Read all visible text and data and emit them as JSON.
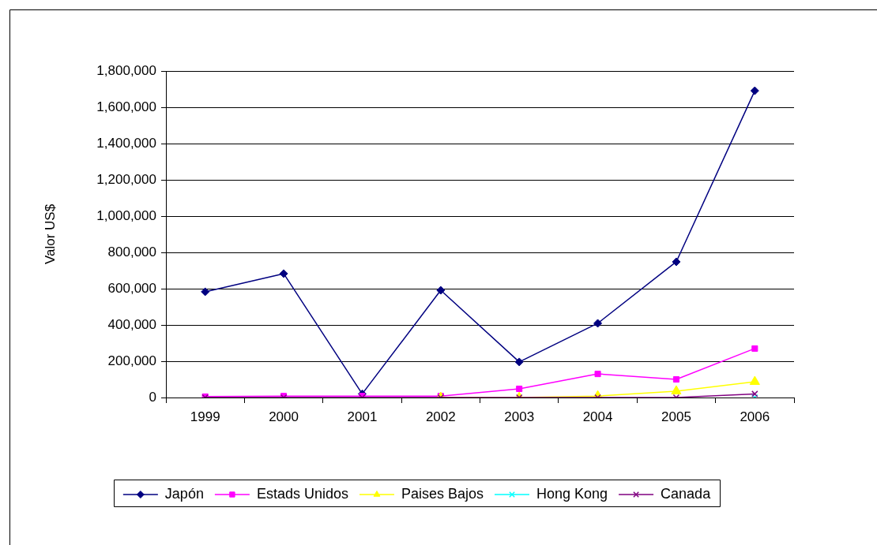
{
  "chart_data": {
    "type": "line",
    "ylabel": "Valor US$",
    "categories": [
      "1999",
      "2000",
      "2001",
      "2002",
      "2003",
      "2004",
      "2005",
      "2006"
    ],
    "series": [
      {
        "name": "Japón",
        "color": "#000080",
        "marker": "diamond",
        "values": [
          583000,
          683000,
          20000,
          591000,
          196000,
          409000,
          748000,
          1691000
        ]
      },
      {
        "name": "Estads Unidos",
        "color": "#ff00ff",
        "marker": "square",
        "values": [
          5000,
          8000,
          8000,
          8000,
          48000,
          130000,
          100000,
          270000
        ]
      },
      {
        "name": "Paises Bajos",
        "color": "#ffff00",
        "marker": "triangle",
        "values": [
          null,
          null,
          null,
          0,
          0,
          8000,
          35000,
          87000
        ]
      },
      {
        "name": "Hong Kong",
        "color": "#00ffff",
        "marker": "cross",
        "values": [
          null,
          null,
          null,
          null,
          null,
          null,
          null,
          0
        ]
      },
      {
        "name": "Canada",
        "color": "#800080",
        "marker": "cross",
        "values": [
          0,
          0,
          0,
          0,
          0,
          0,
          0,
          20000
        ]
      }
    ],
    "ylim": [
      0,
      1800000
    ],
    "yticks": [
      0,
      {
        "value": 200000,
        "label": "200,000"
      },
      {
        "value": 400000,
        "label": "400,000"
      },
      {
        "value": 600000,
        "label": "600,000"
      },
      {
        "value": 800000,
        "label": "800,000"
      },
      {
        "value": 1000000,
        "label": "1,000,000"
      },
      {
        "value": 1200000,
        "label": "1,200,000"
      },
      {
        "value": 1400000,
        "label": "1,400,000"
      },
      {
        "value": 1600000,
        "label": "1,600,000"
      },
      {
        "value": 1800000,
        "label": "1,800,000"
      }
    ],
    "grid": "y",
    "legend": "bottom",
    "line_style": "solid"
  }
}
